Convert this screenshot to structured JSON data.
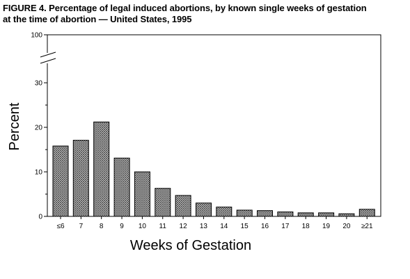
{
  "figure": {
    "title_line1": "FIGURE 4. Percentage of legal induced abortions, by known single weeks of gestation",
    "title_line2": "at the time of abortion — United States, 1995"
  },
  "chart_data": {
    "type": "bar",
    "title": "FIGURE 4. Percentage of legal induced abortions, by known single weeks of gestation at the time of abortion — United States, 1995",
    "xlabel": "Weeks of Gestation",
    "ylabel": "Percent",
    "categories": [
      "≤6",
      "7",
      "8",
      "9",
      "10",
      "11",
      "12",
      "13",
      "14",
      "15",
      "16",
      "17",
      "18",
      "19",
      "20",
      "≥21"
    ],
    "values": [
      15.8,
      17.1,
      21.2,
      13.1,
      10.0,
      6.3,
      4.7,
      3.0,
      2.1,
      1.4,
      1.3,
      1.0,
      0.8,
      0.8,
      0.6,
      1.6
    ],
    "ylim": [
      0,
      100
    ],
    "axis_break": [
      40,
      100
    ],
    "yticks": [
      0,
      10,
      20,
      30,
      100
    ],
    "ytick_labels": [
      "0",
      "10",
      "20",
      "30",
      "100"
    ],
    "minor_yticks": [
      5,
      15,
      25,
      35
    ],
    "bar_fill": "crosshatch",
    "grid": false
  }
}
